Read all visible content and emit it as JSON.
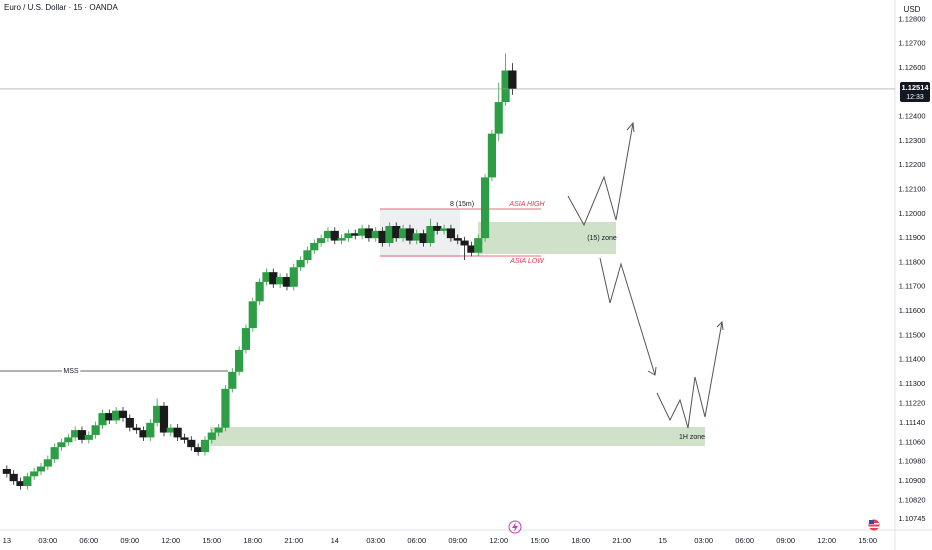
{
  "chart_data": {
    "type": "candlestick",
    "title": "Euro / U.S. Dollar · 15 · OANDA",
    "currency": "USD",
    "countdown": "12:33",
    "last_price": 1.12514,
    "up_color": "#2e9e46",
    "down_color": "#1b1b1b",
    "grid": false,
    "annotations": [
      "MSS",
      "8 (15m)",
      "ASIA HIGH",
      "ASIA LOW",
      "(15) zone",
      "1H zone"
    ],
    "xlim": [
      -0.5,
      65
    ],
    "xticks": [
      {
        "value": 0,
        "label": "13"
      },
      {
        "value": 3,
        "label": "03:00"
      },
      {
        "value": 6,
        "label": "06:00"
      },
      {
        "value": 9,
        "label": "09:00"
      },
      {
        "value": 12,
        "label": "12:00"
      },
      {
        "value": 15,
        "label": "15:00"
      },
      {
        "value": 18,
        "label": "18:00"
      },
      {
        "value": 21,
        "label": "21:00"
      },
      {
        "value": 24,
        "label": "14"
      },
      {
        "value": 27,
        "label": "03:00"
      },
      {
        "value": 30,
        "label": "06:00"
      },
      {
        "value": 33,
        "label": "09:00"
      },
      {
        "value": 36,
        "label": "12:00"
      },
      {
        "value": 39,
        "label": "15:00"
      },
      {
        "value": 42,
        "label": "18:00"
      },
      {
        "value": 45,
        "label": "21:00"
      },
      {
        "value": 48,
        "label": "15"
      },
      {
        "value": 51,
        "label": "03:00"
      },
      {
        "value": 54,
        "label": "06:00"
      },
      {
        "value": 57,
        "label": "09:00"
      },
      {
        "value": 60,
        "label": "12:00"
      },
      {
        "value": 63,
        "label": "15:00"
      }
    ],
    "ylim": [
      1.10699,
      1.1288
    ],
    "yticks": [
      {
        "value": 1.128,
        "label": "1.12800"
      },
      {
        "value": 1.127,
        "label": "1.12700"
      },
      {
        "value": 1.126,
        "label": "1.12600"
      },
      {
        "value": 1.124,
        "label": "1.12400"
      },
      {
        "value": 1.123,
        "label": "1.12300"
      },
      {
        "value": 1.122,
        "label": "1.12200"
      },
      {
        "value": 1.121,
        "label": "1.12100"
      },
      {
        "value": 1.12,
        "label": "1.12000"
      },
      {
        "value": 1.119,
        "label": "1.11900"
      },
      {
        "value": 1.118,
        "label": "1.11800"
      },
      {
        "value": 1.117,
        "label": "1.11700"
      },
      {
        "value": 1.116,
        "label": "1.11600"
      },
      {
        "value": 1.115,
        "label": "1.11500"
      },
      {
        "value": 1.114,
        "label": "1.11400"
      },
      {
        "value": 1.113,
        "label": "1.11300"
      },
      {
        "value": 1.1122,
        "label": "1.11220"
      },
      {
        "value": 1.1114,
        "label": "1.11140"
      },
      {
        "value": 1.1106,
        "label": "1.11060"
      },
      {
        "value": 1.1098,
        "label": "1.10980"
      },
      {
        "value": 1.109,
        "label": "1.10900"
      },
      {
        "value": 1.1082,
        "label": "1.10820"
      },
      1.10745
    ],
    "x": [
      0,
      0.5,
      1,
      1.5,
      2,
      2.5,
      3,
      3.5,
      4,
      4.5,
      5,
      5.5,
      6,
      6.5,
      7,
      7.5,
      8,
      8.5,
      9,
      9.5,
      10,
      10.5,
      11,
      11.5,
      12,
      12.5,
      13,
      13.5,
      14,
      14.5,
      15,
      15.5,
      16,
      16.5,
      17,
      17.5,
      18,
      18.5,
      19,
      19.5,
      20,
      20.5,
      21,
      21.5,
      22,
      22.5,
      23,
      23.5,
      24,
      24.5,
      25,
      25.5,
      26,
      26.5,
      27,
      27.5,
      28,
      28.5,
      29,
      29.5,
      30,
      30.5,
      31,
      31.5,
      32,
      32.5,
      33,
      33.5,
      34,
      34.5,
      35,
      35.5,
      36,
      36.5,
      37
    ],
    "open": [
      1.1095,
      1.1093,
      1.109,
      1.1088,
      1.1092,
      1.1094,
      1.1096,
      1.1099,
      1.1104,
      1.1106,
      1.1108,
      1.1111,
      1.1107,
      1.1109,
      1.1113,
      1.1118,
      1.1115,
      1.1119,
      1.1116,
      1.1112,
      1.1111,
      1.1108,
      1.1114,
      1.1121,
      1.111,
      1.1112,
      1.1108,
      1.1107,
      1.1104,
      1.1102,
      1.1107,
      1.111,
      1.1112,
      1.1128,
      1.1135,
      1.1144,
      1.1153,
      1.1164,
      1.1172,
      1.1176,
      1.1171,
      1.1174,
      1.117,
      1.1178,
      1.1181,
      1.1185,
      1.1188,
      1.119,
      1.1193,
      1.1189,
      1.119,
      1.1192,
      1.1191,
      1.1194,
      1.119,
      1.1193,
      1.1188,
      1.1195,
      1.119,
      1.1194,
      1.1189,
      1.1192,
      1.1188,
      1.1195,
      1.1193,
      1.1194,
      1.119,
      1.1189,
      1.1187,
      1.1184,
      1.119,
      1.1215,
      1.1233,
      1.1246,
      1.1259
    ],
    "high": [
      1.10965,
      1.10945,
      1.10915,
      1.10935,
      1.10955,
      1.10975,
      1.11005,
      1.11055,
      1.11075,
      1.11095,
      1.11125,
      1.11125,
      1.11105,
      1.11145,
      1.11195,
      1.11195,
      1.11205,
      1.11205,
      1.11175,
      1.11135,
      1.11125,
      1.11155,
      1.1124,
      1.11225,
      1.11135,
      1.11135,
      1.11095,
      1.11085,
      1.11055,
      1.11085,
      1.11115,
      1.11135,
      1.11295,
      1.11365,
      1.11455,
      1.11545,
      1.11655,
      1.11735,
      1.11775,
      1.11775,
      1.11755,
      1.11755,
      1.11795,
      1.11825,
      1.11865,
      1.11895,
      1.11915,
      1.11945,
      1.11945,
      1.11915,
      1.11935,
      1.11935,
      1.11955,
      1.11955,
      1.11945,
      1.11945,
      1.11965,
      1.11965,
      1.11955,
      1.11955,
      1.11935,
      1.11935,
      1.1198,
      1.11965,
      1.11955,
      1.11955,
      1.11915,
      1.11905,
      1.11885,
      1.11915,
      1.12165,
      1.12345,
      1.1254,
      1.1266,
      1.1262
    ],
    "low": [
      1.10915,
      1.10885,
      1.10865,
      1.10865,
      1.10905,
      1.10925,
      1.10945,
      1.10975,
      1.11025,
      1.11045,
      1.11065,
      1.11055,
      1.11055,
      1.11075,
      1.11115,
      1.11135,
      1.11135,
      1.11145,
      1.11105,
      1.11095,
      1.11065,
      1.11065,
      1.11125,
      1.11085,
      1.11085,
      1.11065,
      1.11055,
      1.11025,
      1.11005,
      1.11005,
      1.11055,
      1.11085,
      1.11105,
      1.11265,
      1.11335,
      1.11425,
      1.11515,
      1.11625,
      1.11705,
      1.11695,
      1.11695,
      1.11685,
      1.11685,
      1.11765,
      1.11795,
      1.11835,
      1.11865,
      1.11885,
      1.11875,
      1.11875,
      1.11885,
      1.11895,
      1.11895,
      1.11885,
      1.11885,
      1.11865,
      1.11865,
      1.11885,
      1.11885,
      1.11875,
      1.11875,
      1.11865,
      1.11865,
      1.11915,
      1.11915,
      1.11885,
      1.11875,
      1.1181,
      1.11825,
      1.11825,
      1.11885,
      1.12135,
      1.123,
      1.12445,
      1.1249
    ],
    "close": [
      1.1093,
      1.109,
      1.1088,
      1.1092,
      1.1094,
      1.1096,
      1.1099,
      1.1104,
      1.1106,
      1.1108,
      1.1111,
      1.1107,
      1.1109,
      1.1113,
      1.1118,
      1.1115,
      1.1119,
      1.1116,
      1.1112,
      1.1111,
      1.1108,
      1.1114,
      1.1121,
      1.111,
      1.1112,
      1.1108,
      1.1107,
      1.1104,
      1.1102,
      1.1107,
      1.111,
      1.1112,
      1.1128,
      1.1135,
      1.1144,
      1.1153,
      1.1164,
      1.1172,
      1.1176,
      1.1171,
      1.1174,
      1.117,
      1.1178,
      1.1181,
      1.1185,
      1.1188,
      1.119,
      1.1193,
      1.1189,
      1.119,
      1.1192,
      1.1191,
      1.1194,
      1.119,
      1.1193,
      1.1188,
      1.1195,
      1.119,
      1.1194,
      1.1189,
      1.1192,
      1.1188,
      1.1195,
      1.1193,
      1.1194,
      1.119,
      1.1189,
      1.1187,
      1.1184,
      1.119,
      1.1215,
      1.1233,
      1.1246,
      1.1259,
      1.12514
    ]
  }
}
